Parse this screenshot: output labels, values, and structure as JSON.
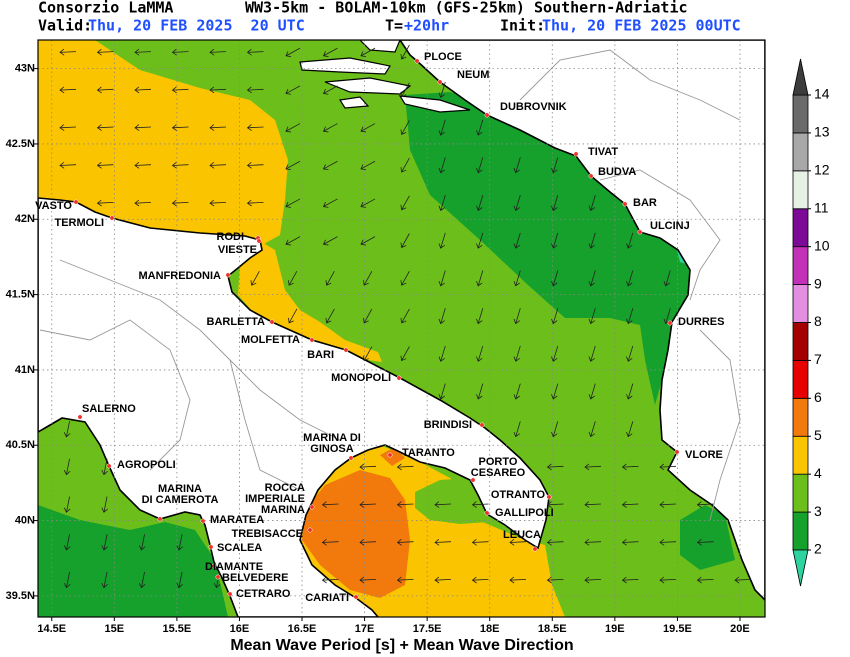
{
  "header": {
    "source": "Consorzio LaMMA",
    "model": "WW3-5km - BOLAM-10km (GFS-25km) Southern-Adriatic",
    "valid_label": "Valid:",
    "valid_time": "Thu, 20 FEB 2025  20 UTC",
    "step_label": "T=",
    "step": "+20hr",
    "init_label": "Init:",
    "init_time": "Thu, 20 FEB 2025 00UTC"
  },
  "map": {
    "lonlim": [
      14.39,
      20.2
    ],
    "latlim": [
      39.36,
      43.19
    ],
    "lon_ticks": [
      {
        "value": 14.5,
        "label": "14.5E"
      },
      {
        "value": 15,
        "label": "15E"
      },
      {
        "value": 15.5,
        "label": "15.5E"
      },
      {
        "value": 16,
        "label": "16E"
      },
      {
        "value": 16.5,
        "label": "16.5E"
      },
      {
        "value": 17,
        "label": "17E"
      },
      {
        "value": 17.5,
        "label": "17.5E"
      },
      {
        "value": 18,
        "label": "18E"
      },
      {
        "value": 18.5,
        "label": "18.5E"
      },
      {
        "value": 19,
        "label": "19E"
      },
      {
        "value": 19.5,
        "label": "19.5E"
      },
      {
        "value": 20,
        "label": "20E"
      }
    ],
    "lat_ticks": [
      {
        "value": 43,
        "label": "43N"
      },
      {
        "value": 42.5,
        "label": "42.5N"
      },
      {
        "value": 42,
        "label": "42N"
      },
      {
        "value": 41.5,
        "label": "41.5N"
      },
      {
        "value": 41,
        "label": "41N"
      },
      {
        "value": 40.5,
        "label": "40.5N"
      },
      {
        "value": 40,
        "label": "40N"
      },
      {
        "value": 39.5,
        "label": "39.5N"
      }
    ],
    "cities": [
      [
        "PLOCE"
      ],
      [
        "NEUM"
      ],
      [
        "DUBROVNIK"
      ],
      [
        "TIVAT"
      ],
      [
        "BUDVA"
      ],
      [
        "BAR"
      ],
      [
        "ULCINJ"
      ],
      [
        "DURRES"
      ],
      [
        "VLORE"
      ],
      [
        "VASTO"
      ],
      [
        "TERMOLI"
      ],
      [
        "RODI"
      ],
      [
        "VIESTE"
      ],
      [
        "MANFREDONIA"
      ],
      [
        "BARLETTA"
      ],
      [
        "MOLFETTA"
      ],
      [
        "BARI"
      ],
      [
        "MONOPOLI"
      ],
      [
        "BRINDISI"
      ],
      [
        "MARINA  DI",
        "GINOSA"
      ],
      [
        "TARANTO"
      ],
      [
        "PORTO",
        "CESAREO"
      ],
      [
        "OTRANTO"
      ],
      [
        "GALLIPOLI"
      ],
      [
        "LEUCA"
      ],
      [
        "SALERNO"
      ],
      [
        "AGROPOLI"
      ],
      [
        "MARINA",
        "DI CAMEROTA"
      ],
      [
        "MARATEA"
      ],
      [
        "ROCCA",
        "IMPERIALE",
        "MARINA"
      ],
      [
        "TREBISACCE"
      ],
      [
        "SCALEA"
      ],
      [
        "DIAMANTE"
      ],
      [
        "BELVEDERE"
      ],
      [
        "CETRARO"
      ],
      [
        "CARIATI"
      ]
    ]
  },
  "colorbar": {
    "ticks": [
      2,
      3,
      4,
      5,
      6,
      7,
      8,
      9,
      10,
      11,
      12,
      13,
      14
    ],
    "colors": [
      "#16a02c",
      "#6cbf1a",
      "#fac400",
      "#f27a0c",
      "#e60000",
      "#a50000",
      "#e38ee0",
      "#c232b8",
      "#7c0a96",
      "#e6f0e4",
      "#a8a8a8",
      "#6a6a6a"
    ],
    "under_color": "#2fd3a0",
    "over_color": "#3c3c3c"
  },
  "footer": "Mean Wave Period [s] + Mean Wave Direction"
}
